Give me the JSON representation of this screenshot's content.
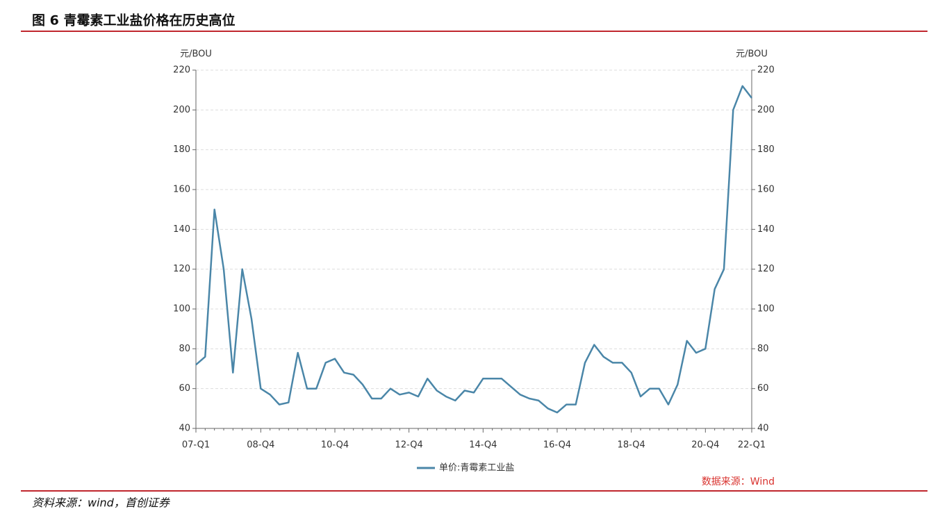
{
  "page_title": "图 6 青霉素工业盐价格在历史高位",
  "footnote": "资料来源：wind，首创证券",
  "chart_data": {
    "type": "line",
    "y_label": "元/BOU",
    "y2_label": "元/BOU",
    "source": "数据来源：Wind",
    "categories": [
      "07-Q1",
      null,
      null,
      null,
      null,
      null,
      null,
      "08-Q4",
      null,
      null,
      null,
      null,
      null,
      null,
      null,
      "10-Q4",
      null,
      null,
      null,
      null,
      null,
      null,
      null,
      "12-Q4",
      null,
      null,
      null,
      null,
      null,
      null,
      null,
      "14-Q4",
      null,
      null,
      null,
      null,
      null,
      null,
      null,
      "16-Q4",
      null,
      null,
      null,
      null,
      null,
      null,
      null,
      "18-Q4",
      null,
      null,
      null,
      null,
      null,
      null,
      null,
      "20-Q4",
      null,
      null,
      null,
      null,
      "22-Q1"
    ],
    "series": [
      {
        "name": "单价:青霉素工业盐",
        "color": "#4a86a8",
        "values": [
          72,
          76,
          150,
          120,
          68,
          120,
          95,
          60,
          57,
          52,
          53,
          78,
          60,
          60,
          73,
          75,
          68,
          67,
          62,
          55,
          55,
          60,
          57,
          58,
          56,
          65,
          59,
          56,
          54,
          59,
          58,
          65,
          65,
          65,
          61,
          57,
          55,
          54,
          50,
          48,
          52,
          52,
          73,
          82,
          76,
          73,
          73,
          68,
          56,
          60,
          60,
          52,
          62,
          84,
          78,
          80,
          110,
          120,
          200,
          212,
          206
        ]
      }
    ],
    "ylim": [
      40,
      220
    ],
    "yticks": [
      40,
      60,
      80,
      100,
      120,
      140,
      160,
      180,
      200,
      220
    ],
    "y2lim": [
      40,
      220
    ],
    "y2ticks": [
      40,
      60,
      80,
      100,
      120,
      140,
      160,
      180,
      200,
      220
    ],
    "grid": true
  }
}
